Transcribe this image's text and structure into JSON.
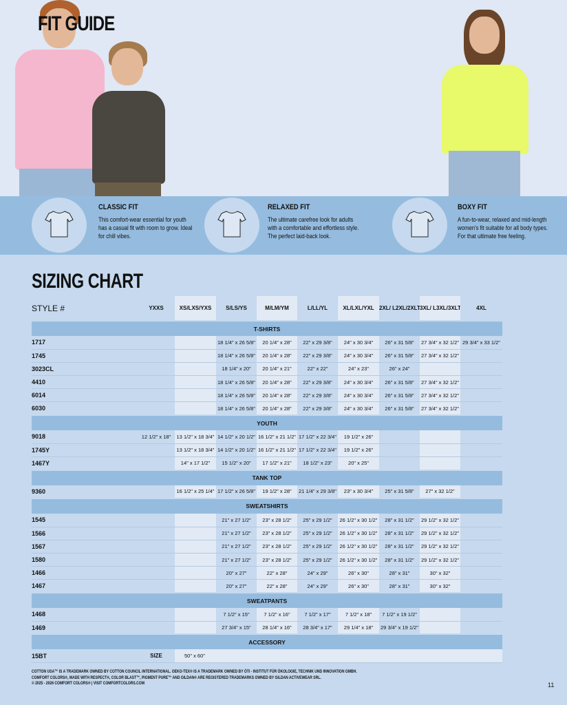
{
  "header": {
    "title": "FIT GUIDE"
  },
  "colors": {
    "background": "#c6d9ee",
    "band": "#95bcdf",
    "light_column": "#e2eaf5",
    "pink_shirt": "#f4b7cd",
    "charcoal_shirt": "#4a4640",
    "neon_shirt": "#e8f96a"
  },
  "fits": [
    {
      "name": "CLASSIC FIT",
      "description": "This comfort-wear essential for youth has a casual fit with room to grow. Ideal for chill vibes.",
      "icon": "tshirt-icon"
    },
    {
      "name": "RELAXED FIT",
      "description": "The ultimate carefree look for adults with a comfortable and effortless style. The perfect laid-back look.",
      "icon": "tshirt-icon"
    },
    {
      "name": "BOXY FIT",
      "description": "A fun-to-wear, relaxed and mid-length women's fit suitable for all body types. For that ultimate free feeling.",
      "icon": "tshirt-icon"
    }
  ],
  "sizing": {
    "title": "SIZING CHART",
    "columns": [
      "STYLE #",
      "YXXS",
      "XS/LXS/YXS",
      "S/LS/YS",
      "M/LM/YM",
      "L/LL/YL",
      "XL/LXL/YXL",
      "2XL/ L2XL/2XLT",
      "3XL/ L3XL/3XLT",
      "4XL"
    ],
    "sections": [
      {
        "title": "T-SHIRTS",
        "rows": [
          {
            "style": "1717",
            "cells": [
              "",
              "",
              "18 1/4\" x 26 5/8\"",
              "20 1/4\" x 28\"",
              "22\" x 29 3/8\"",
              "24\" x 30 3/4\"",
              "26\" x 31 5/8\"",
              "27 3/4\" x 32 1/2\"",
              "29 3/4\" x 33 1/2\""
            ]
          },
          {
            "style": "1745",
            "cells": [
              "",
              "",
              "18 1/4\" x 26 5/8\"",
              "20 1/4\" x 28\"",
              "22\" x 29 3/8\"",
              "24\" x 30 3/4\"",
              "26\" x 31 5/8\"",
              "27 3/4\" x 32 1/2\"",
              ""
            ]
          },
          {
            "style": "3023CL",
            "cells": [
              "",
              "",
              "18 1/4\" x 20\"",
              "20 1/4\" x 21\"",
              "22\" x 22\"",
              "24\" x 23\"",
              "26\" x 24\"",
              "",
              ""
            ]
          },
          {
            "style": "4410",
            "cells": [
              "",
              "",
              "18 1/4\" x 26 5/8\"",
              "20 1/4\" x 28\"",
              "22\" x 29 3/8\"",
              "24\" x 30 3/4\"",
              "26\" x 31 5/8\"",
              "27 3/4\" x 32 1/2\"",
              ""
            ]
          },
          {
            "style": "6014",
            "cells": [
              "",
              "",
              "18 1/4\" x 26 5/8\"",
              "20 1/4\" x 28\"",
              "22\" x 29 3/8\"",
              "24\" x 30 3/4\"",
              "26\" x 31 5/8\"",
              "27 3/4\" x 32 1/2\"",
              ""
            ]
          },
          {
            "style": "6030",
            "cells": [
              "",
              "",
              "18 1/4\" x 26 5/8\"",
              "20 1/4\" x 28\"",
              "22\" x 29 3/8\"",
              "24\" x 30 3/4\"",
              "26\" x 31 5/8\"",
              "27 3/4\" x 32 1/2\"",
              ""
            ]
          }
        ]
      },
      {
        "title": "YOUTH",
        "rows": [
          {
            "style": "9018",
            "cells": [
              "12 1/2\" x 18\"",
              "13 1/2\" x 18 3/4\"",
              "14 1/2\" x 20 1/2\"",
              "16 1/2\" x 21 1/2\"",
              "17 1/2\" x 22 3/4\"",
              "19 1/2\" x 26\"",
              "",
              "",
              ""
            ]
          },
          {
            "style": "1745Y",
            "cells": [
              "",
              "13 1/2\" x 18 3/4\"",
              "14 1/2\" x 20 1/2\"",
              "16 1/2\" x 21 1/2\"",
              "17 1/2\" x 22 3/4\"",
              "19 1/2\" x 26\"",
              "",
              "",
              ""
            ]
          },
          {
            "style": "1467Y",
            "cells": [
              "",
              "14\" x 17 1/2\"",
              "15 1/2\" x 20\"",
              "17 1/2\" x 21\"",
              "18 1/2\" x 23\"",
              "20\" x 25\"",
              "",
              "",
              ""
            ]
          }
        ]
      },
      {
        "title": "TANK TOP",
        "rows": [
          {
            "style": "9360",
            "cells": [
              "",
              "16 1/2\" x 25 1/4\"",
              "17 1/2\" x 26 5/8\"",
              "19 1/2\" x 28\"",
              "21 1/4\" x 29 3/8\"",
              "23\" x 30 3/4\"",
              "25\" x 31 5/8\"",
              "27\" x 32 1/2\"",
              ""
            ]
          }
        ]
      },
      {
        "title": "SWEATSHIRTS",
        "rows": [
          {
            "style": "1545",
            "cells": [
              "",
              "",
              "21\" x 27 1/2\"",
              "23\" x 28 1/2\"",
              "25\" x 29 1/2\"",
              "26 1/2\" x 30 1/2\"",
              "28\" x 31 1/2\"",
              "29 1/2\" x 32 1/2\"",
              ""
            ]
          },
          {
            "style": "1566",
            "cells": [
              "",
              "",
              "21\" x 27 1/2\"",
              "23\" x 28 1/2\"",
              "25\" x 29 1/2\"",
              "26 1/2\" x 30 1/2\"",
              "28\" x 31 1/2\"",
              "29 1/2\" x 32 1/2\"",
              ""
            ]
          },
          {
            "style": "1567",
            "cells": [
              "",
              "",
              "21\" x 27 1/2\"",
              "23\" x 28 1/2\"",
              "25\" x 29 1/2\"",
              "26 1/2\" x 30 1/2\"",
              "28\" x 31 1/2\"",
              "29 1/2\" x 32 1/2\"",
              ""
            ]
          },
          {
            "style": "1580",
            "cells": [
              "",
              "",
              "21\" x 27 1/2\"",
              "23\" x 28 1/2\"",
              "25\" x 29 1/2\"",
              "26 1/2\" x 30 1/2\"",
              "28\" x 31 1/2\"",
              "29 1/2\" x 32 1/2\"",
              ""
            ]
          },
          {
            "style": "1466",
            "cells": [
              "",
              "",
              "20\" x 27\"",
              "22\" x 28\"",
              "24\" x 29\"",
              "26\" x 30\"",
              "28\" x 31\"",
              "30\" x 32\"",
              ""
            ]
          },
          {
            "style": "1467",
            "cells": [
              "",
              "",
              "20\" x 27\"",
              "22\" x 28\"",
              "24\" x 29\"",
              "26\" x 30\"",
              "28\" x 31\"",
              "30\" x 32\"",
              ""
            ]
          }
        ]
      },
      {
        "title": "SWEATPANTS",
        "rows": [
          {
            "style": "1468",
            "cells": [
              "",
              "",
              "7 1/2\" x 15\"",
              "7 1/2\" x 16\"",
              "7 1/2\" x 17\"",
              "7 1/2\" x 18\"",
              "7 1/2\" x 19 1/2\"",
              "",
              ""
            ]
          },
          {
            "style": "1469",
            "cells": [
              "",
              "",
              "27 3/4\" x 15\"",
              "28 1/4\" x 16\"",
              "28 3/4\" x 17\"",
              "29 1/4\" x 18\"",
              "29 3/4\" x 19 1/2\"",
              "",
              ""
            ]
          }
        ]
      },
      {
        "title": "ACCESSORY",
        "rows": [
          {
            "style": "15BT",
            "label": "SIZE",
            "accessory_value": "50\" x 60\""
          }
        ]
      }
    ]
  },
  "footer": {
    "lines": [
      "COTTON USA™ IS A TRADEMARK OWNED BY COTTON COUNCIL INTERNATIONAL. OEKO-TEX® IS A TRADEMARK OWNED BY ÖTI - INSTITUT FÜR ÖKOLOGIE, TECHNIK UND INNOVATION GMBH.",
      "COMFORT COLORS®, MADE WITH RESPECT®, COLOR BLAST™, PIGMENT PURE™ AND GILDAN® ARE REGISTERED TRADEMARKS OWNED BY GILDAN ACTIVEWEAR SRL.",
      "© 2025 - 2026 COMFORT COLORS® | VISIT COMFORTCOLORS.COM"
    ],
    "page_number": "11"
  }
}
